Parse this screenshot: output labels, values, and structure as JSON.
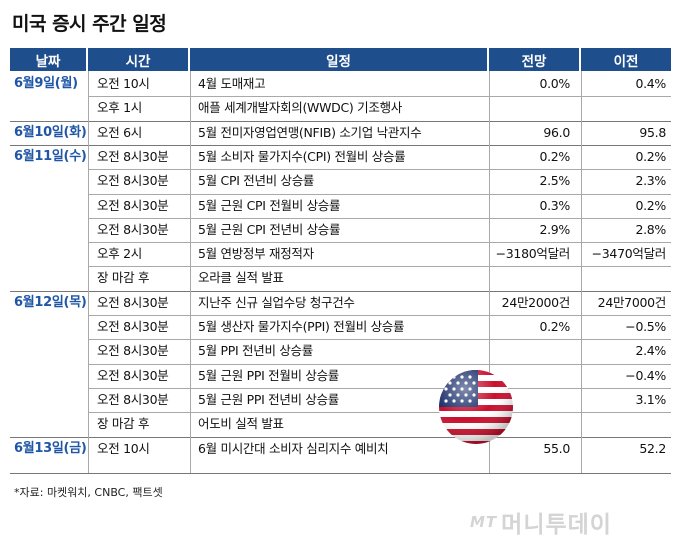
{
  "title": "미국 증시 주간 일정",
  "headers": {
    "date": "날짜",
    "time": "시간",
    "event": "일정",
    "forecast": "전망",
    "previous": "이전"
  },
  "rows": [
    {
      "date": "6월9일(월)",
      "time": "오전 10시",
      "event": "4월 도매재고",
      "forecast": "0.0%",
      "previous": "0.4%"
    },
    {
      "date": "",
      "time": "오후 1시",
      "event": "애플 세계개발자회의(WWDC) 기조행사",
      "forecast": "",
      "previous": ""
    },
    {
      "date": "6월10일(화)",
      "time": "오전 6시",
      "event": "5월 전미자영업연맹(NFIB) 소기업 낙관지수",
      "forecast": "96.0",
      "previous": "95.8"
    },
    {
      "date": "6월11일(수)",
      "time": "오전 8시30분",
      "event": "5월 소비자 물가지수(CPI) 전월비 상승률",
      "forecast": "0.2%",
      "previous": "0.2%"
    },
    {
      "date": "",
      "time": "오전 8시30분",
      "event": "5월 CPI 전년비 상승률",
      "forecast": "2.5%",
      "previous": "2.3%"
    },
    {
      "date": "",
      "time": "오전 8시30분",
      "event": "5월 근원 CPI 전월비 상승률",
      "forecast": "0.3%",
      "previous": "0.2%"
    },
    {
      "date": "",
      "time": "오전 8시30분",
      "event": "5월 근원 CPI 전년비 상승률",
      "forecast": "2.9%",
      "previous": "2.8%"
    },
    {
      "date": "",
      "time": "오후 2시",
      "event": "5월 연방정부 재정적자",
      "forecast": "−3180억달러",
      "previous": "−3470억달러"
    },
    {
      "date": "",
      "time": "장 마감 후",
      "event": "오라클 실적 발표",
      "forecast": "",
      "previous": ""
    },
    {
      "date": "6월12일(목)",
      "time": "오전 8시30분",
      "event": "지난주 신규 실업수당 청구건수",
      "forecast": "24만2000건",
      "previous": "24만7000건"
    },
    {
      "date": "",
      "time": "오전 8시30분",
      "event": "5월 생산자 물가지수(PPI) 전월비 상승률",
      "forecast": "0.2%",
      "previous": "−0.5%"
    },
    {
      "date": "",
      "time": "오전 8시30분",
      "event": "5월 PPI 전년비 상승률",
      "forecast": "",
      "previous": "2.4%"
    },
    {
      "date": "",
      "time": "오전 8시30분",
      "event": "5월 근원 PPI 전월비 상승률",
      "forecast": "",
      "previous": "−0.4%"
    },
    {
      "date": "",
      "time": "오전 8시30분",
      "event": "5월 근원 PPI 전년비 상승률",
      "forecast": "",
      "previous": "3.1%"
    },
    {
      "date": "",
      "time": "장 마감 후",
      "event": "어도비 실적 발표",
      "forecast": "",
      "previous": ""
    },
    {
      "date": "6월13일(금)",
      "time": "오전 10시",
      "event": "6월 미시간대 소비자 심리지수 예비치",
      "forecast": "55.0",
      "previous": "52.2"
    }
  ],
  "footnote": "*자료: 마켓워치, CNBC, 팩트셋",
  "watermark": {
    "logo": "MT",
    "text": "머니투데이"
  },
  "colors": {
    "header_bg": "#1f4e8c",
    "date_text": "#1f56a5"
  },
  "icons": {
    "flag": "us-flag-icon"
  }
}
